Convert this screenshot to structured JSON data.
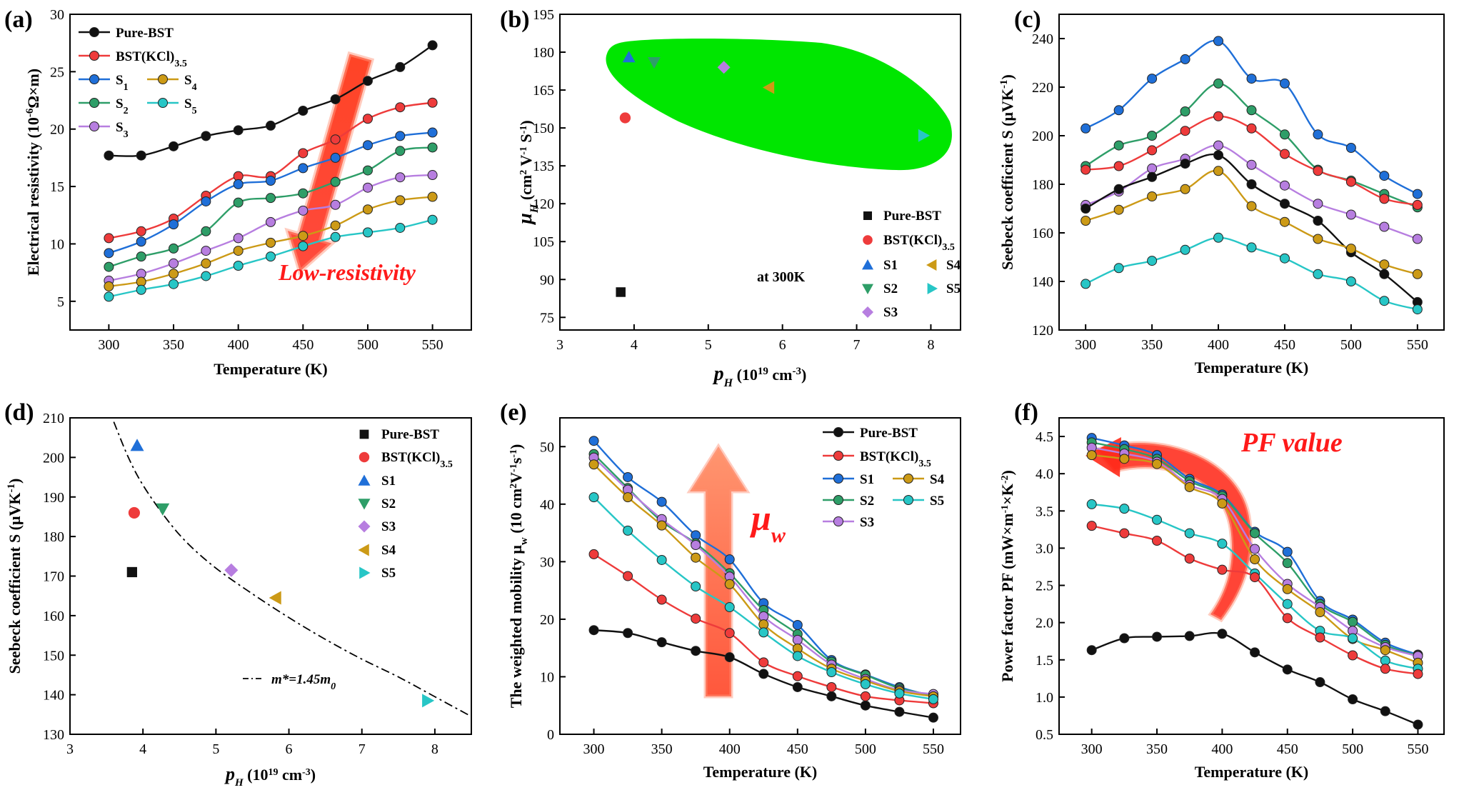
{
  "colors": {
    "Pure-BST": "#111111",
    "BST(KCl)3.5": "#ee3b3b",
    "S1": "#1f6fd8",
    "S2": "#2e9e68",
    "S3": "#b77ee0",
    "S4": "#cc9a16",
    "S5": "#27c6c6",
    "green_region": "#00e600",
    "arrow_red": "#ff2a1a"
  },
  "chart_data": [
    {
      "panel": "(a)",
      "type": "line",
      "xlabel": "Temperature (K)",
      "ylabel": "Electrical resistivity (10",
      "ylabel_sup": "-6",
      "ylabel_tail": "Ω×m)",
      "xlim": [
        270,
        580
      ],
      "ylim": [
        2.5,
        30
      ],
      "xticks": [
        300,
        350,
        400,
        450,
        500,
        550
      ],
      "yticks": [
        5,
        10,
        15,
        20,
        25,
        30
      ],
      "x": [
        300,
        325,
        350,
        375,
        400,
        425,
        450,
        475,
        500,
        525,
        550
      ],
      "series": [
        {
          "name": "Pure-BST",
          "key": "Pure-BST",
          "values": [
            17.7,
            17.7,
            18.5,
            19.4,
            19.9,
            20.3,
            21.6,
            22.6,
            24.2,
            25.4,
            27.3
          ]
        },
        {
          "name": "BST(KCl)",
          "sub": "3.5",
          "key": "BST(KCl)3.5",
          "values": [
            10.5,
            11.1,
            12.2,
            14.2,
            15.9,
            15.9,
            17.9,
            19.1,
            20.9,
            21.9,
            22.3
          ]
        },
        {
          "name": "S",
          "sub": "1",
          "key": "S1",
          "values": [
            9.2,
            10.2,
            11.7,
            13.7,
            15.2,
            15.5,
            16.6,
            17.5,
            18.6,
            19.4,
            19.7
          ]
        },
        {
          "name": "S",
          "sub": "2",
          "key": "S2",
          "values": [
            8.0,
            8.9,
            9.6,
            11.1,
            13.6,
            14.0,
            14.4,
            15.4,
            16.4,
            18.1,
            18.4
          ]
        },
        {
          "name": "S",
          "sub": "3",
          "key": "S3",
          "values": [
            6.8,
            7.4,
            8.3,
            9.4,
            10.5,
            11.9,
            12.9,
            13.4,
            14.9,
            15.8,
            16.0
          ]
        },
        {
          "name": "S",
          "sub": "4",
          "key": "S4",
          "values": [
            6.3,
            6.7,
            7.4,
            8.3,
            9.4,
            10.1,
            10.7,
            11.6,
            13.0,
            13.8,
            14.1
          ]
        },
        {
          "name": "S",
          "sub": "5",
          "key": "S5",
          "values": [
            5.4,
            6.0,
            6.5,
            7.2,
            8.1,
            8.9,
            9.8,
            10.6,
            11.0,
            11.4,
            12.1
          ]
        }
      ],
      "annotation": "Low-resistivity"
    },
    {
      "panel": "(b)",
      "type": "scatter",
      "xlabel": "p",
      "xlabel_sub": "H",
      "xlabel_tail": " (10",
      "xlabel_sup": "19",
      "xlabel_end": " cm",
      "xlabel_sup2": "-3",
      "xlabel_close": ")",
      "ylabel": "μ",
      "ylabel_sub": "H",
      "ylabel_tail": " (cm",
      "ylabel_sup": "2",
      "ylabel_mid": " V",
      "ylabel_sup2": "-1",
      "ylabel_end": " S",
      "ylabel_sup3": "-1",
      "ylabel_close": ")",
      "xlim": [
        3,
        8.4
      ],
      "ylim": [
        70,
        195
      ],
      "xticks": [
        3,
        4,
        5,
        6,
        7,
        8
      ],
      "yticks": [
        75,
        90,
        105,
        120,
        135,
        150,
        165,
        180,
        195
      ],
      "points": [
        {
          "name": "Pure-BST",
          "key": "Pure-BST",
          "marker": "square",
          "x": 3.82,
          "y": 85
        },
        {
          "name": "BST(KCl)",
          "sub": "3.5",
          "key": "BST(KCl)3.5",
          "marker": "circle",
          "x": 3.88,
          "y": 154
        },
        {
          "name": "S1",
          "key": "S1",
          "marker": "tri-up",
          "x": 3.93,
          "y": 178
        },
        {
          "name": "S2",
          "key": "S2",
          "marker": "tri-down",
          "x": 4.27,
          "y": 176
        },
        {
          "name": "S3",
          "key": "S3",
          "marker": "diamond",
          "x": 5.21,
          "y": 174
        },
        {
          "name": "S4",
          "key": "S4",
          "marker": "tri-left",
          "x": 5.82,
          "y": 166
        },
        {
          "name": "S5",
          "key": "S5",
          "marker": "tri-right",
          "x": 7.9,
          "y": 147
        }
      ],
      "annotation": "at 300K"
    },
    {
      "panel": "(c)",
      "type": "line",
      "xlabel": "Temperature (K)",
      "ylabel": "Seebeck coefficient S  (μVK",
      "ylabel_sup": "-1",
      "ylabel_close": ")",
      "xlim": [
        280,
        570
      ],
      "ylim": [
        120,
        250
      ],
      "xticks": [
        300,
        350,
        400,
        450,
        500,
        550
      ],
      "yticks": [
        120,
        140,
        160,
        180,
        200,
        220,
        240
      ],
      "x": [
        300,
        325,
        350,
        375,
        400,
        425,
        450,
        475,
        500,
        525,
        550
      ],
      "series": [
        {
          "key": "S1",
          "values": [
            203,
            210.5,
            223.5,
            231.5,
            239,
            223.5,
            221.5,
            200.5,
            195,
            183.5,
            176
          ]
        },
        {
          "key": "S2",
          "values": [
            187.5,
            196,
            200,
            210,
            221.5,
            210.5,
            200.5,
            186,
            181.5,
            176,
            170.5
          ]
        },
        {
          "key": "BST(KCl)3.5",
          "values": [
            186,
            187.5,
            194,
            202,
            208,
            203,
            192.5,
            185.5,
            181,
            174,
            171.5
          ]
        },
        {
          "key": "S3",
          "values": [
            171.5,
            177,
            186.5,
            190.5,
            196,
            188,
            179.5,
            172,
            167.5,
            162.5,
            157.5
          ]
        },
        {
          "key": "Pure-BST",
          "values": [
            170,
            178,
            183,
            188.5,
            192,
            180,
            172,
            165,
            152,
            143,
            131.5
          ]
        },
        {
          "key": "S4",
          "values": [
            165,
            169.5,
            175,
            178,
            185.5,
            171,
            164.5,
            157.5,
            153.5,
            147,
            143
          ]
        },
        {
          "key": "S5",
          "values": [
            139,
            145.5,
            148.5,
            153,
            158,
            154,
            149.5,
            143,
            140,
            132,
            128.5
          ]
        }
      ]
    },
    {
      "panel": "(d)",
      "type": "scatter",
      "xlabel": "p",
      "xlabel_sub": "H",
      "xlabel_tail": " (10",
      "xlabel_sup": "19",
      "xlabel_end": " cm",
      "xlabel_sup2": "-3",
      "xlabel_close": ")",
      "ylabel": "Seebeck coefficient S  (μVK",
      "ylabel_sup": "-1",
      "ylabel_close": ")",
      "xlim": [
        3,
        8.5
      ],
      "ylim": [
        130,
        210
      ],
      "xticks": [
        3,
        4,
        5,
        6,
        7,
        8
      ],
      "yticks": [
        130,
        140,
        150,
        160,
        170,
        180,
        190,
        200,
        210
      ],
      "points": [
        {
          "name": "Pure-BST",
          "key": "Pure-BST",
          "marker": "square",
          "x": 3.85,
          "y": 171
        },
        {
          "name": "BST(KCl)",
          "sub": "3.5",
          "key": "BST(KCl)3.5",
          "marker": "circle",
          "x": 3.88,
          "y": 186
        },
        {
          "name": "S1",
          "key": "S1",
          "marker": "tri-up",
          "x": 3.92,
          "y": 203
        },
        {
          "name": "S2",
          "key": "S2",
          "marker": "tri-down",
          "x": 4.27,
          "y": 187
        },
        {
          "name": "S3",
          "key": "S3",
          "marker": "diamond",
          "x": 5.21,
          "y": 171.5
        },
        {
          "name": "S4",
          "key": "S4",
          "marker": "tri-left",
          "x": 5.82,
          "y": 164.5
        },
        {
          "name": "S5",
          "key": "S5",
          "marker": "tri-right",
          "x": 7.9,
          "y": 138.5
        }
      ],
      "curve": {
        "label": "m*=1.45m",
        "label_sub": "0",
        "x": [
          3.6,
          3.8,
          4.0,
          4.3,
          4.6,
          5.0,
          5.5,
          6.0,
          6.5,
          7.0,
          7.5,
          8.0,
          8.5
        ],
        "y": [
          209,
          200,
          193,
          185,
          178.5,
          172,
          165.5,
          159.5,
          154,
          149,
          144.5,
          139.5,
          134.5
        ]
      }
    },
    {
      "panel": "(e)",
      "type": "line",
      "xlabel": "Temperature (K)",
      "ylabel": "The weighted mobility μ",
      "ylabel_sub": "w",
      "ylabel_tail": " (10 cm",
      "ylabel_sup": "2",
      "ylabel_mid": "V",
      "ylabel_sup2": "-1",
      "ylabel_end": "s",
      "ylabel_sup3": "-1",
      "ylabel_close": ")",
      "xlim": [
        275,
        570
      ],
      "ylim": [
        0,
        55
      ],
      "xticks": [
        300,
        350,
        400,
        450,
        500,
        550
      ],
      "yticks": [
        0,
        10,
        20,
        30,
        40,
        50
      ],
      "x": [
        300,
        325,
        350,
        375,
        400,
        425,
        450,
        475,
        500,
        525,
        550
      ],
      "series": [
        {
          "name": "Pure-BST",
          "key": "Pure-BST",
          "values": [
            18.1,
            17.6,
            16.0,
            14.5,
            13.4,
            10.5,
            8.2,
            6.6,
            5.0,
            3.9,
            2.9
          ]
        },
        {
          "name": "BST(KCl)",
          "sub": "3.5",
          "key": "BST(KCl)3.5",
          "values": [
            31.3,
            27.5,
            23.4,
            20.1,
            17.6,
            12.5,
            10.1,
            8.2,
            6.6,
            5.9,
            5.4
          ]
        },
        {
          "name": "S1",
          "key": "S1",
          "values": [
            51.0,
            44.7,
            40.4,
            34.6,
            30.4,
            22.8,
            19.0,
            12.9,
            10.4,
            8.2,
            6.6
          ]
        },
        {
          "name": "S2",
          "key": "S2",
          "values": [
            48.7,
            42.8,
            37.0,
            33.2,
            28.0,
            21.6,
            17.4,
            12.6,
            10.3,
            8.0,
            6.8
          ]
        },
        {
          "name": "S3",
          "key": "S3",
          "values": [
            48.1,
            42.5,
            37.4,
            32.9,
            27.4,
            20.5,
            16.4,
            12.1,
            9.6,
            7.7,
            7.0
          ]
        },
        {
          "name": "S4",
          "key": "S4",
          "values": [
            46.9,
            41.2,
            36.3,
            30.7,
            26.1,
            19.1,
            14.9,
            11.4,
            9.3,
            7.5,
            6.6
          ]
        },
        {
          "name": "S5",
          "key": "S5",
          "values": [
            41.2,
            35.4,
            30.3,
            25.7,
            22.1,
            17.7,
            13.6,
            10.8,
            8.7,
            7.1,
            6.1
          ]
        }
      ],
      "annotation": "μ",
      "annotation_sub": "w"
    },
    {
      "panel": "(f)",
      "type": "line",
      "xlabel": "Temperature (K)",
      "ylabel": "Power factor PF  (mW×m",
      "ylabel_sup": "-1",
      "ylabel_mid": "×K",
      "ylabel_sup2": "-2",
      "ylabel_close": ")",
      "xlim": [
        275,
        570
      ],
      "ylim": [
        0.5,
        4.75
      ],
      "xticks": [
        300,
        350,
        400,
        450,
        500,
        550
      ],
      "yticks": [
        0.5,
        1.0,
        1.5,
        2.0,
        2.5,
        3.0,
        3.5,
        4.0,
        4.5
      ],
      "x": [
        300,
        325,
        350,
        375,
        400,
        425,
        450,
        475,
        500,
        525,
        550
      ],
      "series": [
        {
          "key": "S1",
          "values": [
            4.48,
            4.38,
            4.25,
            3.93,
            3.72,
            3.22,
            2.95,
            2.29,
            2.04,
            1.73,
            1.57
          ]
        },
        {
          "key": "S2",
          "values": [
            4.42,
            4.33,
            4.2,
            3.9,
            3.7,
            3.2,
            2.8,
            2.25,
            2.01,
            1.7,
            1.56
          ]
        },
        {
          "key": "S3",
          "values": [
            4.35,
            4.27,
            4.16,
            3.85,
            3.66,
            2.99,
            2.52,
            2.21,
            1.89,
            1.67,
            1.55
          ]
        },
        {
          "key": "S4",
          "values": [
            4.25,
            4.2,
            4.13,
            3.82,
            3.6,
            2.85,
            2.45,
            2.14,
            1.78,
            1.63,
            1.46
          ]
        },
        {
          "key": "S5",
          "values": [
            3.59,
            3.53,
            3.38,
            3.2,
            3.06,
            2.66,
            2.25,
            1.89,
            1.79,
            1.49,
            1.38
          ]
        },
        {
          "key": "BST(KCl)3.5",
          "values": [
            3.3,
            3.2,
            3.1,
            2.86,
            2.71,
            2.61,
            2.06,
            1.8,
            1.56,
            1.38,
            1.31
          ]
        },
        {
          "key": "Pure-BST",
          "values": [
            1.63,
            1.79,
            1.81,
            1.82,
            1.85,
            1.6,
            1.37,
            1.2,
            0.97,
            0.81,
            0.63
          ]
        }
      ],
      "annotation": "PF value"
    }
  ]
}
